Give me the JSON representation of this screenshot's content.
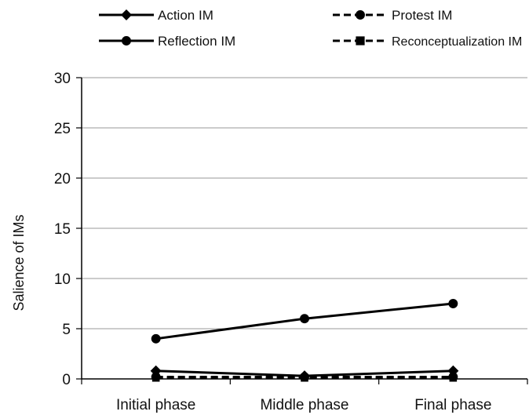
{
  "chart_data": {
    "type": "line",
    "categories": [
      "Initial phase",
      "Middle phase",
      "Final phase"
    ],
    "ylabel": "Salience of IMs",
    "xlabel": "",
    "ylim": [
      0,
      30
    ],
    "yticks": [
      "0",
      "5",
      "10",
      "15",
      "20",
      "25",
      "30"
    ],
    "grid": true,
    "legend_position": "top",
    "series": [
      {
        "name": "Action IM",
        "values": [
          0.8,
          0.3,
          0.8
        ],
        "marker": "diamond",
        "dash": "solid"
      },
      {
        "name": "Protest IM",
        "values": [
          0.2,
          0.2,
          0.2
        ],
        "marker": "circle",
        "dash": "dashed"
      },
      {
        "name": "Reflection IM",
        "values": [
          4,
          6,
          7.5
        ],
        "marker": "circle",
        "dash": "solid"
      },
      {
        "name": "Reconceptualization IM",
        "values": [
          0.1,
          0.1,
          0.1
        ],
        "marker": "square",
        "dash": "dashed"
      }
    ]
  }
}
